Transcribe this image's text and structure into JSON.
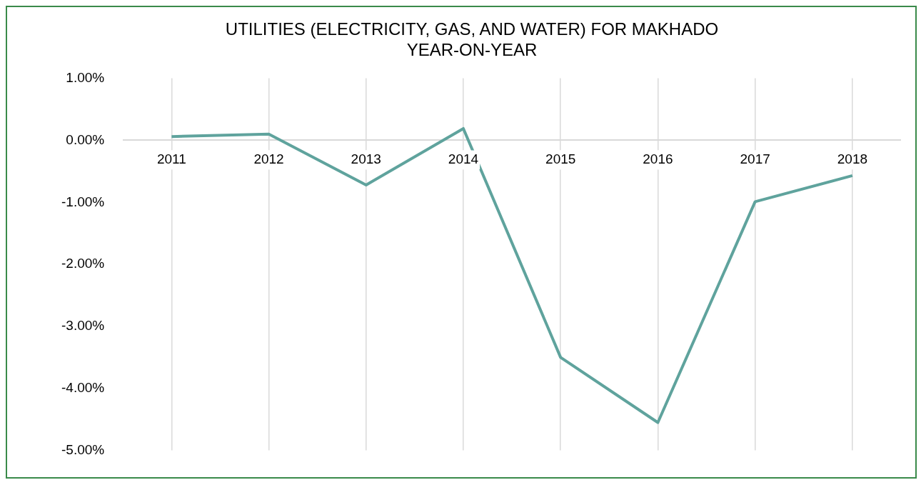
{
  "chart_data": {
    "type": "line",
    "title": "UTILITIES (ELECTRICITY, GAS, AND WATER) FOR MAKHADO\nYEAR-ON-YEAR",
    "categories": [
      "2011",
      "2012",
      "2013",
      "2014",
      "2015",
      "2016",
      "2017",
      "2018"
    ],
    "series": [
      {
        "color": "#5fa39d",
        "values": [
          0.06,
          0.1,
          -0.72,
          0.19,
          -3.5,
          -4.55,
          -0.99,
          -0.57
        ]
      }
    ],
    "ylim": [
      -5,
      1
    ],
    "yticks": [
      {
        "value": 1,
        "label": "1.00%"
      },
      {
        "value": 0,
        "label": "0.00%"
      },
      {
        "value": -1,
        "label": "-1.00%"
      },
      {
        "value": -2,
        "label": "-2.00%"
      },
      {
        "value": -3,
        "label": "-3.00%"
      },
      {
        "value": -4,
        "label": "-4.00%"
      },
      {
        "value": -5,
        "label": "-5.00%"
      }
    ],
    "grid": "x",
    "legend": false,
    "marker": "none",
    "line_style": "solid"
  }
}
